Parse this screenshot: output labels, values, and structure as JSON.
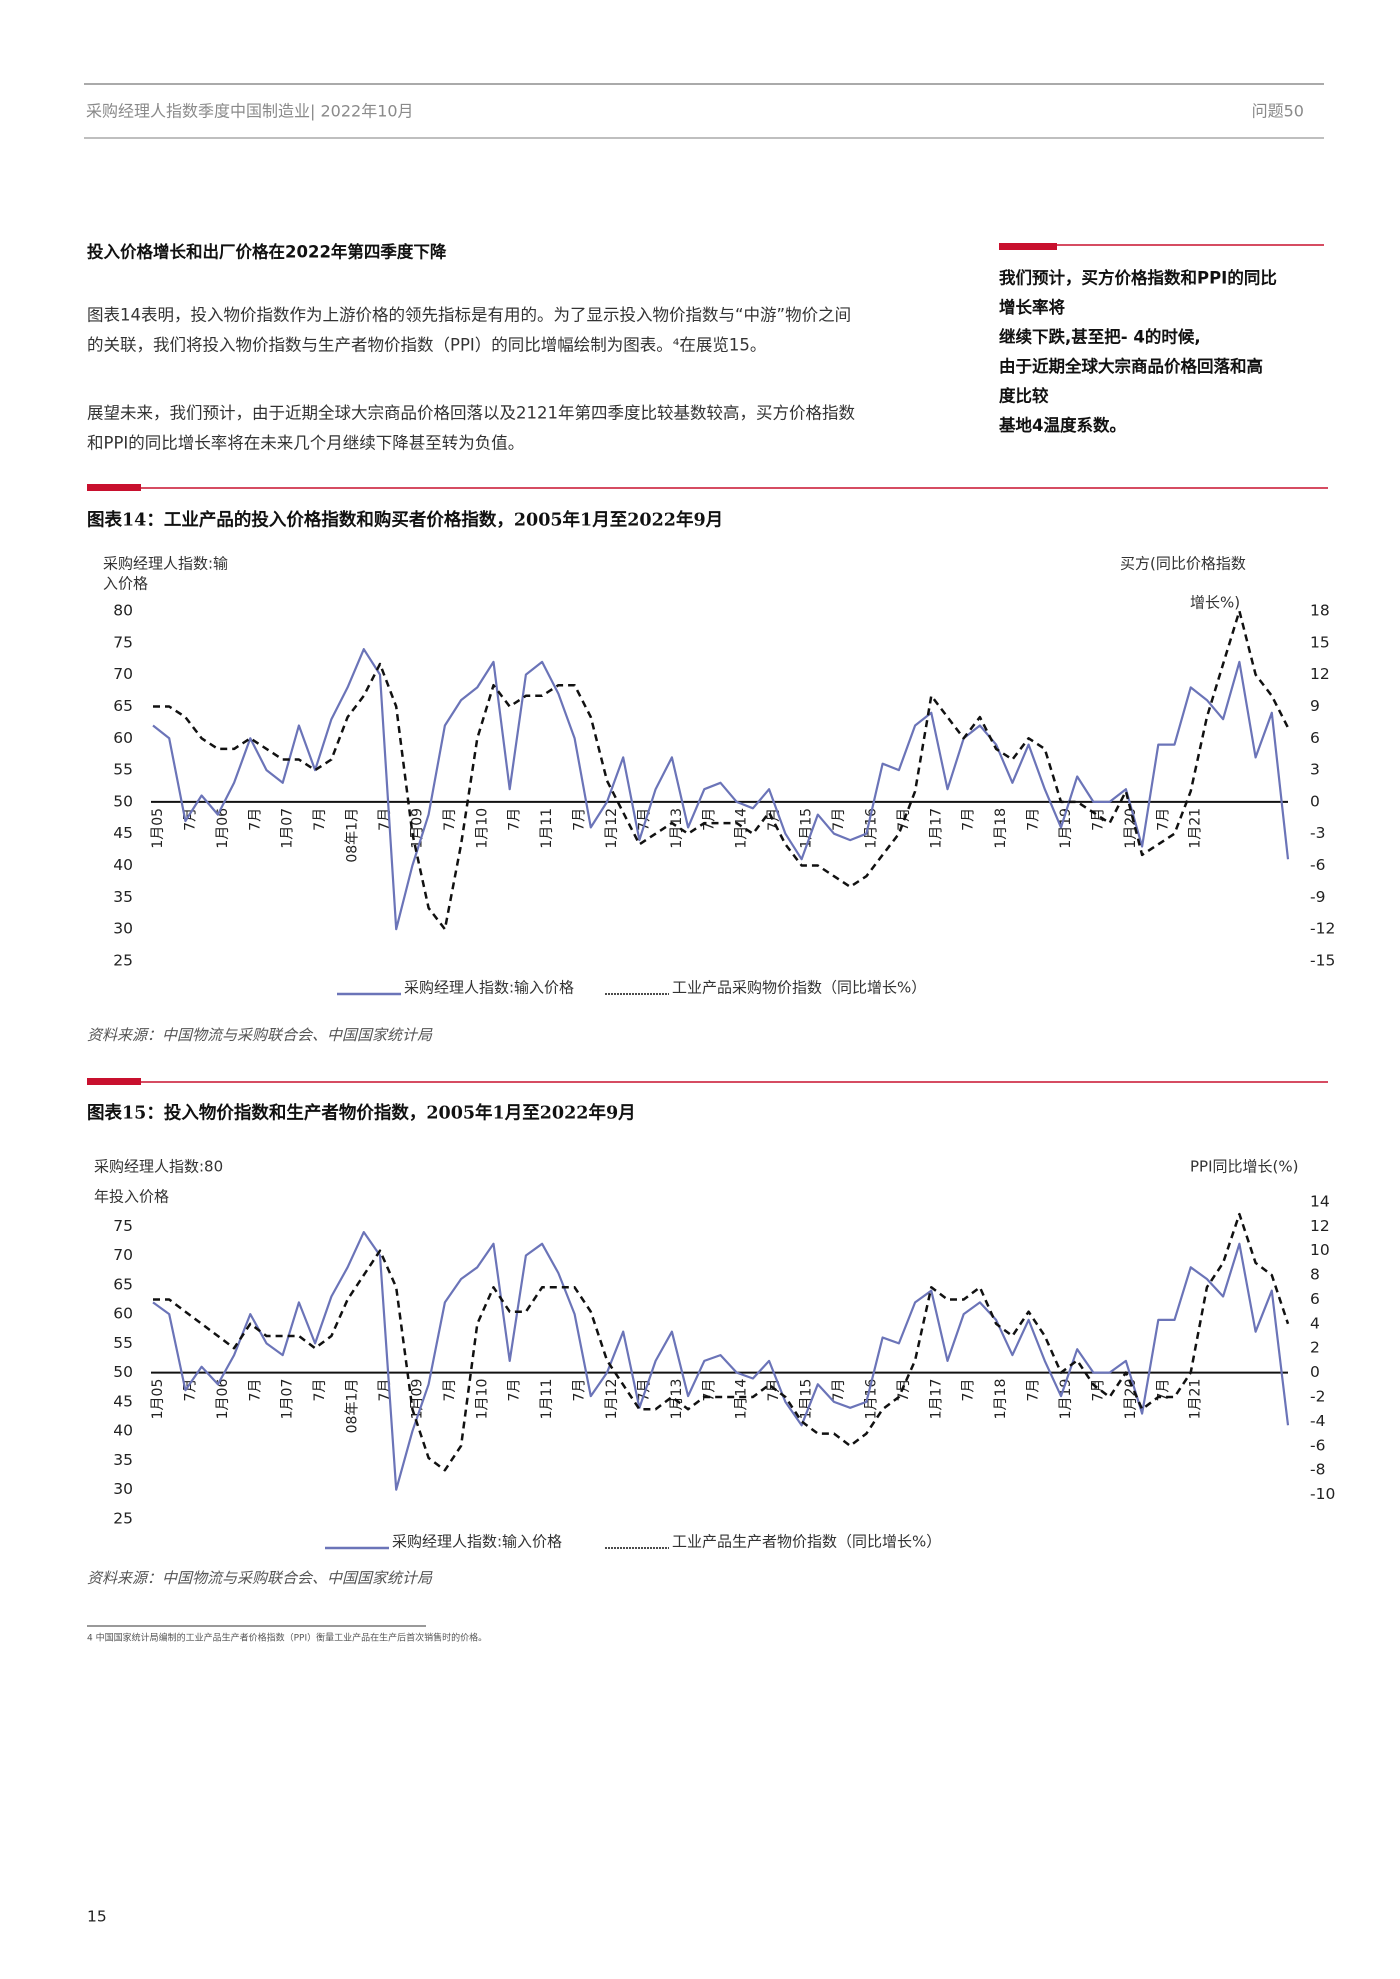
{
  "header": {
    "left": "采购经理人指数季度中国制造业| 2022年10月",
    "right": "问题50"
  },
  "section_title": "投入价格增长和出厂价格在2022年第四季度下降",
  "paragraphs": [
    [
      "图表14表明，投入物价指数作为上游价格的领先指标是有用的。为了显示投入物价指数与“中游”物价之间",
      "的关联，我们将投入物价指数与生产者物价指数（PPI）的同比增幅绘制为图表。⁴在展览15。"
    ],
    [
      "展望未来，我们预计，由于近期全球大宗商品价格回落以及2121年第四季度比较基数较高，买方价格指数",
      "和PPI的同比增长率将在未来几个月继续下降甚至转为负值。"
    ]
  ],
  "sidebar": [
    "我们预计，买方价格指数和PPI的同比",
    "增长率将",
    "继续下跌,甚至把- 4的时候,",
    "由于近期全球大宗商品价格回落和高",
    "度比较",
    "基地4温度系数。"
  ],
  "chart_data": [
    {
      "type": "line",
      "title": "图表14：工业产品的投入价格指数和购买者价格指数，2005年1月至2022年9月",
      "y_label": [
        "采购经理人指数:输",
        "入价格"
      ],
      "y2_label": [
        "买方(同比价格指数",
        "增长%)"
      ],
      "source": "资料来源：中国物流与采购联合会、中国国家统计局",
      "categories": [
        "1月05",
        null,
        "7月",
        null,
        "1月06",
        null,
        "7月",
        null,
        "1月07",
        null,
        "7月",
        null,
        "08年1月",
        null,
        "7月",
        null,
        "1月09",
        null,
        "7月",
        null,
        "1月10",
        null,
        "7月",
        null,
        "1月11",
        null,
        "7月",
        null,
        "1月12",
        null,
        "7月",
        null,
        "1月13",
        null,
        "7月",
        null,
        "1月14",
        null,
        "7月",
        null,
        "1月15",
        null,
        "7月",
        null,
        "1月16",
        null,
        "7月",
        null,
        "1月17",
        null,
        "7月",
        null,
        "1月18",
        null,
        "7月",
        null,
        "1月19",
        null,
        "7月",
        null,
        "1月20",
        null,
        "7月",
        null,
        "1月21",
        null,
        null,
        null,
        null,
        null,
        null
      ],
      "series": [
        {
          "name": "采购经理人指数:输入价格",
          "color": "#6b74b8",
          "axis": "y",
          "values": [
            62,
            60,
            47,
            51,
            48,
            53,
            60,
            55,
            53,
            62,
            55,
            63,
            68,
            74,
            70,
            30,
            40,
            48,
            62,
            66,
            68,
            72,
            52,
            70,
            72,
            67,
            60,
            46,
            50,
            57,
            44,
            52,
            57,
            46,
            52,
            53,
            50,
            49,
            52,
            45,
            41,
            48,
            45,
            44,
            45,
            56,
            55,
            62,
            64,
            52,
            60,
            62,
            59,
            53,
            59,
            52,
            46,
            54,
            50,
            50,
            52,
            43,
            59,
            59,
            68,
            66,
            63,
            72,
            57,
            64,
            41
          ]
        },
        {
          "name": "工业产品采购物价指数（同比增长%）",
          "color": "#111111",
          "axis": "y2",
          "values": [
            9,
            9,
            8,
            6,
            5,
            5,
            6,
            5,
            4,
            4,
            3,
            4,
            8,
            10,
            13,
            9,
            -3,
            -10,
            -12,
            -4,
            6,
            11,
            9,
            10,
            10,
            11,
            11,
            8,
            2,
            -1,
            -4,
            -3,
            -2,
            -3,
            -2,
            -2,
            -2,
            -3,
            -1,
            -4,
            -6,
            -6,
            -7,
            -8,
            -7,
            -5,
            -3,
            1,
            10,
            8,
            6,
            8,
            5,
            4,
            6,
            5,
            0,
            0,
            -1,
            -2,
            1,
            -5,
            -4,
            -3,
            1,
            8,
            13,
            18,
            12,
            10,
            7
          ]
        }
      ],
      "ylim": [
        25,
        80
      ],
      "yticks": [
        25,
        30,
        35,
        40,
        45,
        50,
        55,
        60,
        65,
        70,
        75,
        80
      ],
      "y2lim": [
        -15,
        18
      ],
      "y2ticks": [
        -15,
        -12,
        -9,
        -6,
        -3,
        0,
        3,
        6,
        9,
        12,
        15,
        18
      ]
    },
    {
      "type": "line",
      "title": "图表15：投入物价指数和生产者物价指数，2005年1月至2022年9月",
      "y_label": [
        "采购经理人指数:80",
        "年投入价格"
      ],
      "y2_label": [
        "PPI同比增长(%)"
      ],
      "source": "资料来源：中国物流与采购联合会、中国国家统计局",
      "categories": [
        "1月05",
        null,
        "7月",
        null,
        "1月06",
        null,
        "7月",
        null,
        "1月07",
        null,
        "7月",
        null,
        "08年1月",
        null,
        "7月",
        null,
        "1月09",
        null,
        "7月",
        null,
        "1月10",
        null,
        "7月",
        null,
        "1月11",
        null,
        "7月",
        null,
        "1月12",
        null,
        "7月",
        null,
        "1月13",
        null,
        "7月",
        null,
        "1月14",
        null,
        "7月",
        null,
        "1月15",
        null,
        "7月",
        null,
        "1月16",
        null,
        "7月",
        null,
        "1月17",
        null,
        "7月",
        null,
        "1月18",
        null,
        "7月",
        null,
        "1月19",
        null,
        "7月",
        null,
        "1月20",
        null,
        "7月",
        null,
        "1月21",
        null,
        null,
        null,
        null,
        null,
        null
      ],
      "series": [
        {
          "name": "采购经理人指数:输入价格",
          "color": "#6b74b8",
          "axis": "y",
          "values": [
            62,
            60,
            47,
            51,
            48,
            53,
            60,
            55,
            53,
            62,
            55,
            63,
            68,
            74,
            70,
            30,
            40,
            48,
            62,
            66,
            68,
            72,
            52,
            70,
            72,
            67,
            60,
            46,
            50,
            57,
            44,
            52,
            57,
            46,
            52,
            53,
            50,
            49,
            52,
            45,
            41,
            48,
            45,
            44,
            45,
            56,
            55,
            62,
            64,
            52,
            60,
            62,
            59,
            53,
            59,
            52,
            46,
            54,
            50,
            50,
            52,
            43,
            59,
            59,
            68,
            66,
            63,
            72,
            57,
            64,
            41
          ]
        },
        {
          "name": "工业产品生产者物价指数（同比增长%）",
          "color": "#111111",
          "axis": "y2",
          "values": [
            6,
            6,
            5,
            4,
            3,
            2,
            4,
            3,
            3,
            3,
            2,
            3,
            6,
            8,
            10,
            7,
            -3,
            -7,
            -8,
            -6,
            4,
            7,
            5,
            5,
            7,
            7,
            7,
            5,
            1,
            -1,
            -3,
            -3,
            -2,
            -3,
            -2,
            -2,
            -2,
            -2,
            -1,
            -2,
            -4,
            -5,
            -5,
            -6,
            -5,
            -3,
            -2,
            1,
            7,
            6,
            6,
            7,
            4,
            3,
            5,
            3,
            0,
            1,
            -1,
            -2,
            0,
            -3,
            -2,
            -2,
            0,
            7,
            9,
            13,
            9,
            8,
            4
          ]
        }
      ],
      "ylim": [
        25,
        80
      ],
      "yticks": [
        25,
        30,
        35,
        40,
        45,
        50,
        55,
        60,
        65,
        70,
        75
      ],
      "y2lim": [
        -12,
        14.4
      ],
      "y2ticks": [
        -10,
        -8,
        -6,
        -4,
        -2,
        0,
        2,
        4,
        6,
        8,
        10,
        12,
        14
      ]
    }
  ],
  "footnote": "4 中国国家统计局编制的工业产品生产者价格指数（PPI）衡量工业产品在生产后首次销售时的价格。",
  "page_number": "15"
}
